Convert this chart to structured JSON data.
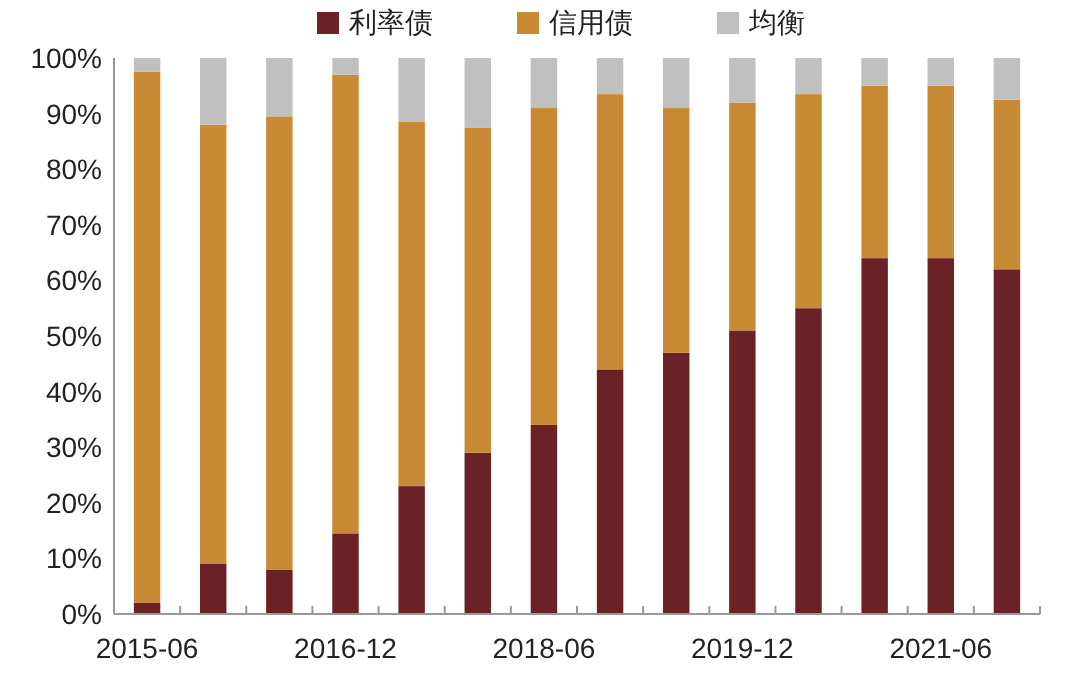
{
  "chart_data": {
    "type": "bar",
    "stacked": true,
    "categories": [
      "2015-06",
      null,
      null,
      "2016-12",
      null,
      null,
      "2018-06",
      null,
      null,
      "2019-12",
      null,
      null,
      "2021-06",
      null
    ],
    "series": [
      {
        "name": "利率债",
        "color": "#6b2226",
        "values": [
          2,
          9,
          8,
          14.5,
          23,
          29,
          34,
          44,
          47,
          51,
          55,
          64,
          64,
          62
        ]
      },
      {
        "name": "信用债",
        "color": "#c98a35",
        "values": [
          95.5,
          79,
          81.5,
          82.5,
          65.5,
          58.5,
          57,
          49.5,
          44,
          41,
          38.5,
          31,
          31,
          30.5
        ]
      },
      {
        "name": "均衡",
        "color": "#c0c0c0",
        "values": [
          2.5,
          12,
          10.5,
          3,
          11.5,
          12.5,
          9,
          6.5,
          9,
          8,
          6.5,
          5,
          5,
          7.5
        ]
      }
    ],
    "ylim": [
      0,
      100
    ],
    "yticks": [
      {
        "value": 0,
        "label": "0%"
      },
      {
        "value": 10,
        "label": "10%"
      },
      {
        "value": 20,
        "label": "20%"
      },
      {
        "value": 30,
        "label": "30%"
      },
      {
        "value": 40,
        "label": "40%"
      },
      {
        "value": 50,
        "label": "50%"
      },
      {
        "value": 60,
        "label": "60%"
      },
      {
        "value": 70,
        "label": "70%"
      },
      {
        "value": 80,
        "label": "80%"
      },
      {
        "value": 90,
        "label": "90%"
      },
      {
        "value": 100,
        "label": "100%"
      }
    ],
    "grid": false,
    "legend": "top"
  }
}
